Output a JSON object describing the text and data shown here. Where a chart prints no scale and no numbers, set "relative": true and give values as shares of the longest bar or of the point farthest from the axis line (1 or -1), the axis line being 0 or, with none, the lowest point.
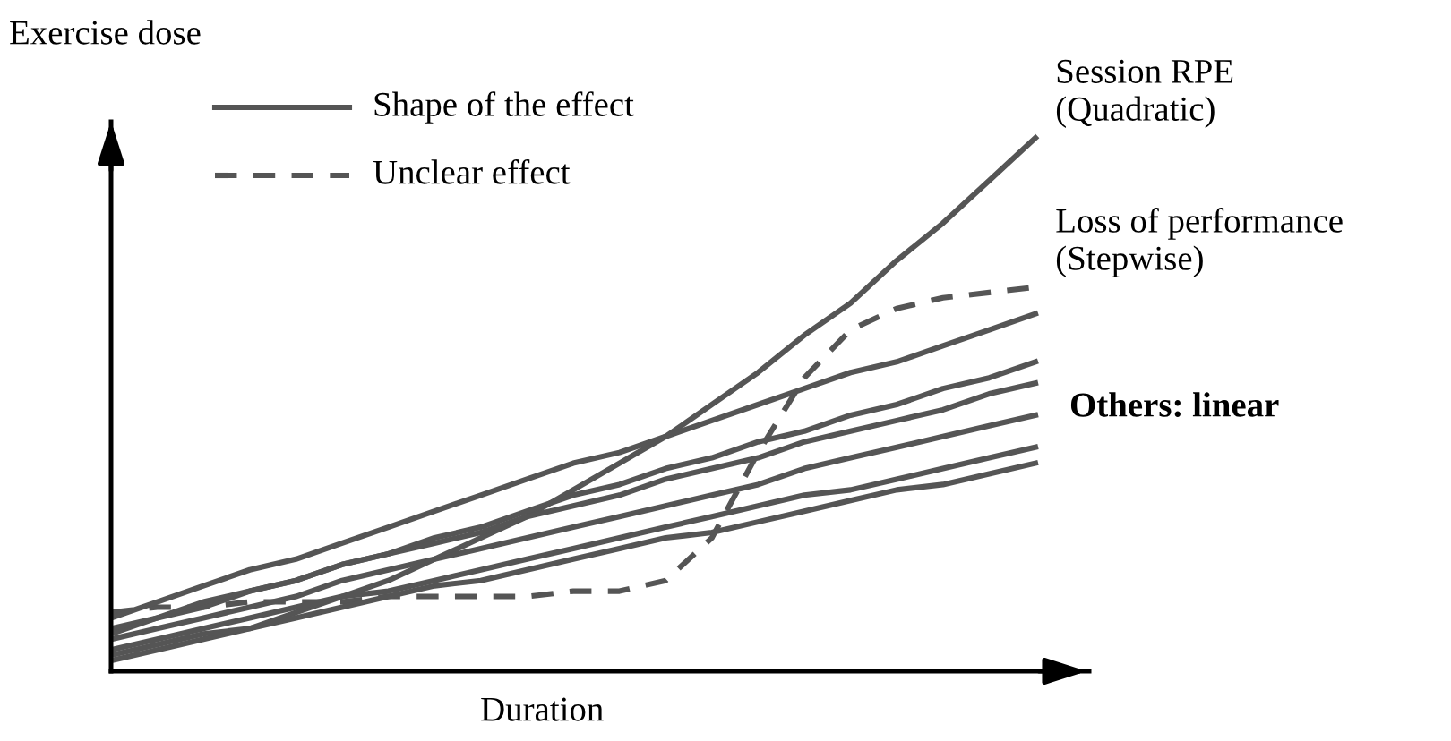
{
  "chart_data": {
    "type": "line",
    "relative": true,
    "xlabel": "Duration",
    "ylabel": "Exercise dose",
    "categories": [
      null,
      null,
      null,
      null,
      null,
      null,
      null,
      null,
      null,
      null,
      null,
      null,
      null,
      null,
      null,
      null,
      null,
      null,
      null,
      null,
      null
    ],
    "series": [
      {
        "name": "Session RPE\n(Quadratic)",
        "color": "#555555",
        "line_style": "solid",
        "values": [
          0.02,
          0.04,
          0.06,
          0.08,
          0.11,
          0.14,
          0.17,
          0.21,
          0.25,
          0.29,
          0.34,
          0.39,
          0.44,
          0.5,
          0.56,
          0.63,
          0.69,
          0.77,
          0.84,
          0.92,
          1.0
        ]
      },
      {
        "name": "Loss of performance\n(Stepwise)",
        "color": "#555555",
        "line_style": "dashed",
        "values": [
          0.11,
          0.12,
          0.12,
          0.13,
          0.13,
          0.13,
          0.14,
          0.14,
          0.14,
          0.14,
          0.15,
          0.15,
          0.17,
          0.25,
          0.41,
          0.55,
          0.64,
          0.68,
          0.7,
          0.71,
          0.72
        ]
      },
      {
        "color": "#555555",
        "line_style": "solid",
        "values": [
          0.1,
          0.13,
          0.16,
          0.19,
          0.21,
          0.24,
          0.27,
          0.3,
          0.33,
          0.36,
          0.39,
          0.41,
          0.44,
          0.47,
          0.5,
          0.53,
          0.56,
          0.58,
          0.61,
          0.64,
          0.67
        ]
      },
      {
        "color": "#555555",
        "line_style": "solid",
        "values": [
          0.07,
          0.1,
          0.12,
          0.15,
          0.17,
          0.2,
          0.22,
          0.25,
          0.27,
          0.3,
          0.33,
          0.35,
          0.38,
          0.4,
          0.43,
          0.45,
          0.48,
          0.5,
          0.53,
          0.55,
          0.58
        ]
      },
      {
        "color": "#555555",
        "line_style": "solid",
        "values": [
          0.08,
          0.1,
          0.13,
          0.15,
          0.17,
          0.2,
          0.22,
          0.24,
          0.26,
          0.29,
          0.31,
          0.33,
          0.36,
          0.38,
          0.4,
          0.43,
          0.45,
          0.47,
          0.49,
          0.52,
          0.54
        ]
      },
      {
        "color": "#555555",
        "line_style": "solid",
        "values": [
          0.06,
          0.08,
          0.1,
          0.12,
          0.14,
          0.17,
          0.19,
          0.21,
          0.23,
          0.25,
          0.27,
          0.29,
          0.31,
          0.33,
          0.35,
          0.38,
          0.4,
          0.42,
          0.44,
          0.46,
          0.48
        ]
      },
      {
        "color": "#555555",
        "line_style": "solid",
        "values": [
          0.04,
          0.06,
          0.08,
          0.1,
          0.12,
          0.14,
          0.15,
          0.17,
          0.19,
          0.21,
          0.23,
          0.25,
          0.27,
          0.29,
          0.31,
          0.33,
          0.34,
          0.36,
          0.38,
          0.4,
          0.42
        ]
      },
      {
        "color": "#555555",
        "line_style": "solid",
        "values": [
          0.03,
          0.05,
          0.07,
          0.08,
          0.1,
          0.12,
          0.14,
          0.16,
          0.17,
          0.19,
          0.21,
          0.23,
          0.25,
          0.26,
          0.28,
          0.3,
          0.32,
          0.34,
          0.35,
          0.37,
          0.39
        ]
      }
    ],
    "annotations": [
      "Shape of the effect",
      "Unclear effect",
      "Others: linear"
    ]
  }
}
